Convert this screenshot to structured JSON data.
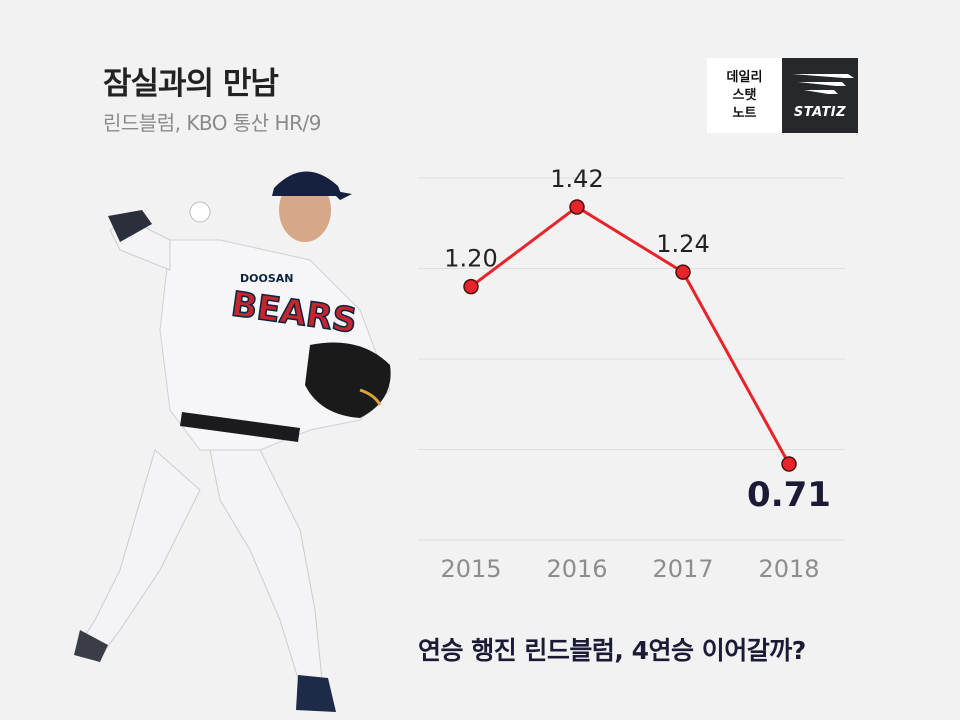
{
  "header": {
    "title": "잠실과의 만남",
    "subtitle": "린드블럼, KBO 통산 HR/9"
  },
  "logo": {
    "left_lines": [
      "데일리",
      "스탯",
      "노트"
    ],
    "right_text": "STATIZ"
  },
  "caption": "연승 행진 린드블럼, 4연승 이어갈까?",
  "colors": {
    "background": "#f2f2f2",
    "line": "#e8232a",
    "marker": "#e8232a",
    "grid": "#e0e0e0"
  },
  "chart_data": {
    "type": "line",
    "categories": [
      "2015",
      "2016",
      "2017",
      "2018"
    ],
    "values": [
      1.2,
      1.42,
      1.24,
      0.71
    ],
    "data_labels": [
      "1.20",
      "1.42",
      "1.24",
      "0.71"
    ],
    "title": "",
    "xlabel": "",
    "ylabel": "",
    "ylim": [
      0.5,
      1.5
    ],
    "grid": true,
    "highlight_last": true
  }
}
